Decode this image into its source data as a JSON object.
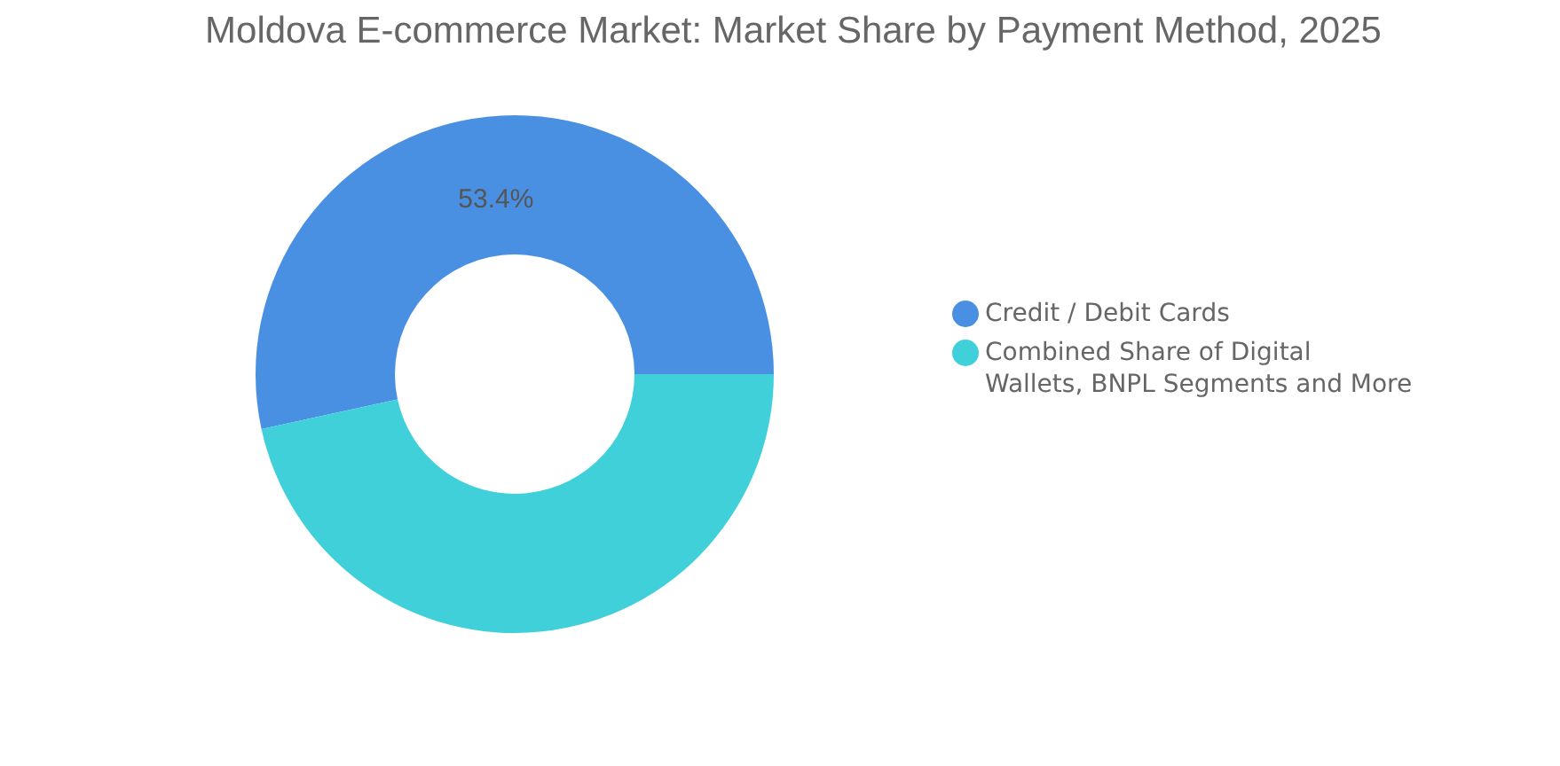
{
  "chart_data": {
    "type": "donut",
    "title": "Moldova E-commerce Market: Market Share by Payment Method, 2025",
    "categories": [
      "Credit / Debit Cards",
      "Combined Share of Digital Wallets, BNPL Segments and More"
    ],
    "values": [
      53.4,
      46.6
    ],
    "colors": [
      "#4a90e2",
      "#40d0d9"
    ],
    "value_labels": [
      "53.4%",
      null
    ],
    "legend": "right"
  }
}
